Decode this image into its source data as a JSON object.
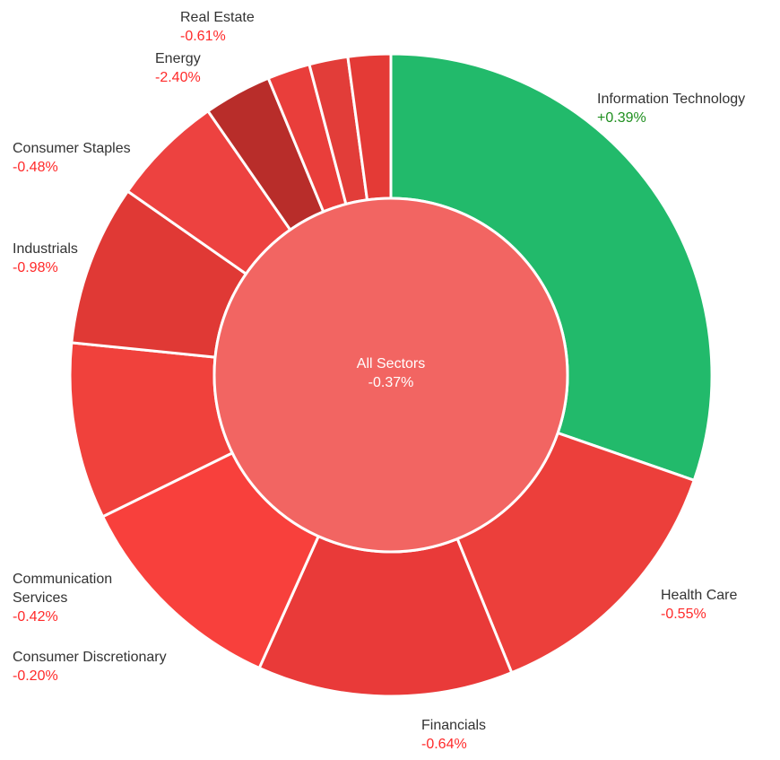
{
  "chart_data": {
    "type": "pie",
    "center": {
      "name": "All Sectors",
      "change": "-0.37%",
      "color": "#f26562"
    },
    "slices": [
      {
        "name": "Information Technology",
        "change": "+0.39%",
        "weight": 31.1,
        "color": "#22ba6b",
        "label_color": "#1f8f1f"
      },
      {
        "name": "Health Care",
        "change": "-0.55%",
        "weight": 13.9,
        "color": "#ec3f3b",
        "label_color": "#ff2a2a"
      },
      {
        "name": "Financials",
        "change": "-0.64%",
        "weight": 13.2,
        "color": "#e93a39",
        "label_color": "#ff2a2a"
      },
      {
        "name": "Consumer Discretionary",
        "change": "-0.20%",
        "weight": 11.3,
        "color": "#f8403c",
        "label_color": "#ff2a2a"
      },
      {
        "name": "Communication Services",
        "change": "-0.42%",
        "weight": 9.1,
        "color": "#f0413c",
        "label_color": "#ff2a2a"
      },
      {
        "name": "Industrials",
        "change": "-0.98%",
        "weight": 8.3,
        "color": "#e03935",
        "label_color": "#ff2a2a"
      },
      {
        "name": "Consumer Staples",
        "change": "-0.48%",
        "weight": 5.8,
        "color": "#ed4240",
        "label_color": "#ff2a2a"
      },
      {
        "name": "Energy",
        "change": "-2.40%",
        "weight": 3.5,
        "color": "#b82d2a",
        "label_color": "#ff2a2a"
      },
      {
        "name": "",
        "change": "",
        "weight": 2.2,
        "color": "#e93e3b",
        "label_color": "#ff2a2a"
      },
      {
        "name": "",
        "change": "",
        "weight": 2.0,
        "color": "#e23d39",
        "label_color": "#ff2a2a"
      },
      {
        "name": "Real Estate",
        "change": "-0.61%",
        "weight": 2.2,
        "color": "#e43a36",
        "label_color": "#ff2a2a"
      }
    ]
  }
}
